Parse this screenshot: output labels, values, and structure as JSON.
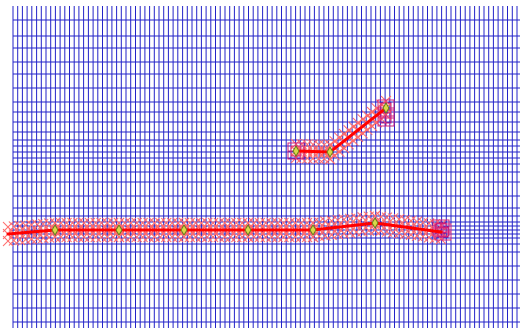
{
  "colors": {
    "background": "#ffffff",
    "grid": "#2323c8",
    "path": "#ff0000",
    "marker_x": "#ff6a6a",
    "marker_box": "#d0207a",
    "node_fill": "#d8d84a",
    "node_stroke": "#6a7a1a"
  },
  "icons": {
    "node": "diamond-node-icon",
    "x_marker": "x-mark-icon",
    "endpoint": "square-endpoint-icon"
  }
}
